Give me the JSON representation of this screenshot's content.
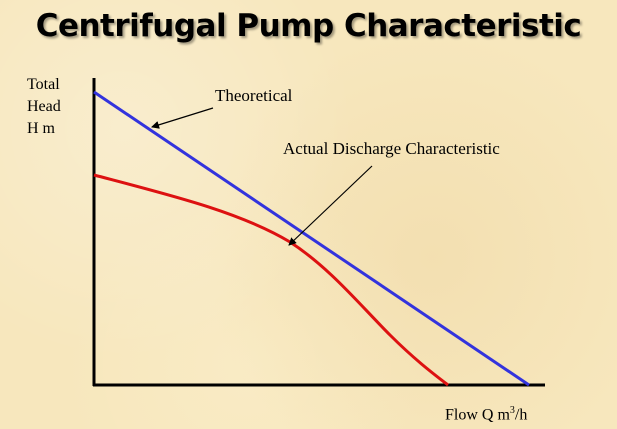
{
  "slide": {
    "title": "Centrifugal Pump Characteristic"
  },
  "chart_data": {
    "type": "line",
    "ylabel_lines": [
      "Total",
      "Head",
      "H m"
    ],
    "xlabel_prefix": "Flow Q m",
    "xlabel_sup": "3",
    "xlabel_suffix": "/h",
    "annotations": [
      {
        "text": "Theoretical"
      },
      {
        "text": "Actual Discharge Characteristic"
      }
    ],
    "colors": {
      "theoretical": "#3333dd",
      "actual": "#dd1111",
      "axis": "#000000",
      "background": "#f7e7bd"
    }
  }
}
